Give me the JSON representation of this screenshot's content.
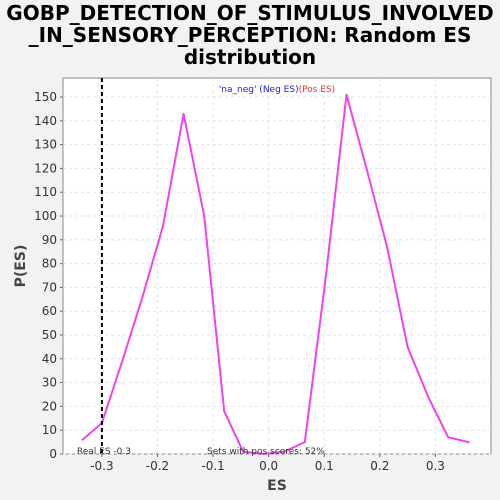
{
  "title_lines": [
    "GOBP_DETECTION_OF_STIMULUS_INVOLVED",
    "_IN_SENSORY_PERCEPTION: Random ES",
    "distribution"
  ],
  "chart_data": {
    "type": "line",
    "title": "GOBP_DETECTION_OF_STIMULUS_INVOLVED_IN_SENSORY_PERCEPTION: Random ES distribution",
    "xlabel": "ES",
    "ylabel": "P(ES)",
    "xlim": [
      -0.37,
      0.4
    ],
    "ylim": [
      0,
      158
    ],
    "x_ticks": [
      -0.3,
      -0.2,
      -0.1,
      0.0,
      0.1,
      0.2,
      0.3
    ],
    "x_tick_labels": [
      "-0.3",
      "-0.2",
      "-0.1",
      "0.0",
      "0.1",
      "0.2",
      "0.3"
    ],
    "y_ticks": [
      0,
      10,
      20,
      30,
      40,
      50,
      60,
      70,
      80,
      90,
      100,
      110,
      120,
      130,
      140,
      150
    ],
    "grid": true,
    "series": [
      {
        "name": "",
        "color": "#ee44ee",
        "x": [
          -0.335,
          -0.3,
          -0.262,
          -0.227,
          -0.19,
          -0.153,
          -0.116,
          -0.08,
          -0.046,
          -0.01,
          0.028,
          0.065,
          0.102,
          0.14,
          0.176,
          0.213,
          0.25,
          0.287,
          0.323,
          0.36
        ],
        "y": [
          6,
          13,
          40,
          66,
          96,
          143,
          100,
          18,
          1,
          0,
          1,
          5,
          73,
          151,
          120,
          87,
          45,
          24,
          7,
          5
        ]
      }
    ],
    "legend": {
      "neg_label": "'na_neg' (Neg ES)",
      "pos_label": "(Pos ES)",
      "neg_color": "#2222cc",
      "pos_color": "#ee3333"
    },
    "reference_line": {
      "x": -0.3,
      "label": "Real ES -0.3"
    },
    "annotation": "Sets with pos scores: 52%"
  }
}
